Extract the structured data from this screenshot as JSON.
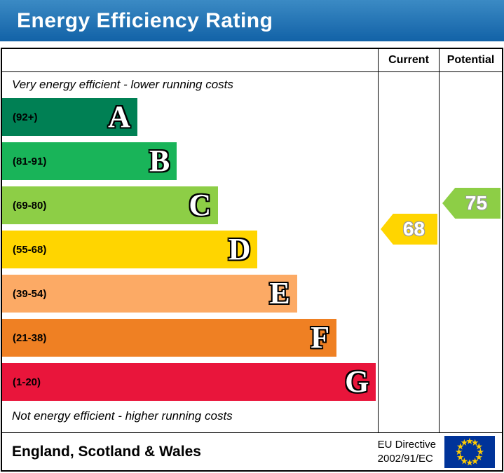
{
  "title": "Energy Efficiency Rating",
  "columns": {
    "current": "Current",
    "potential": "Potential"
  },
  "notes": {
    "top": "Very energy efficient - lower running costs",
    "bottom": "Not energy efficient - higher running costs"
  },
  "footer": {
    "region": "England, Scotland & Wales",
    "directive_line1": "EU Directive",
    "directive_line2": "2002/91/EC"
  },
  "colors": {
    "title_bar_top": "#3b8ac4",
    "title_bar_bottom": "#1262a7",
    "title_text": "#ffffff",
    "border": "#000000",
    "eu_flag_blue": "#003399",
    "eu_flag_stars": "#ffcc00"
  },
  "chart_data": {
    "type": "bar",
    "title": "Energy Efficiency Rating",
    "bands": [
      {
        "letter": "A",
        "range": "(92+)",
        "color": "#008054",
        "width_pct": 36
      },
      {
        "letter": "B",
        "range": "(81-91)",
        "color": "#19b459",
        "width_pct": 46.5
      },
      {
        "letter": "C",
        "range": "(69-80)",
        "color": "#8dce46",
        "width_pct": 57.5
      },
      {
        "letter": "D",
        "range": "(55-68)",
        "color": "#ffd500",
        "width_pct": 68
      },
      {
        "letter": "E",
        "range": "(39-54)",
        "color": "#fcaa65",
        "width_pct": 78.5
      },
      {
        "letter": "F",
        "range": "(21-38)",
        "color": "#ef8023",
        "width_pct": 89
      },
      {
        "letter": "G",
        "range": "(1-20)",
        "color": "#e9153b",
        "width_pct": 99.5
      }
    ],
    "current": {
      "value": 68,
      "band": "D",
      "color": "#ffd500"
    },
    "potential": {
      "value": 75,
      "band": "C",
      "color": "#8dce46"
    }
  }
}
